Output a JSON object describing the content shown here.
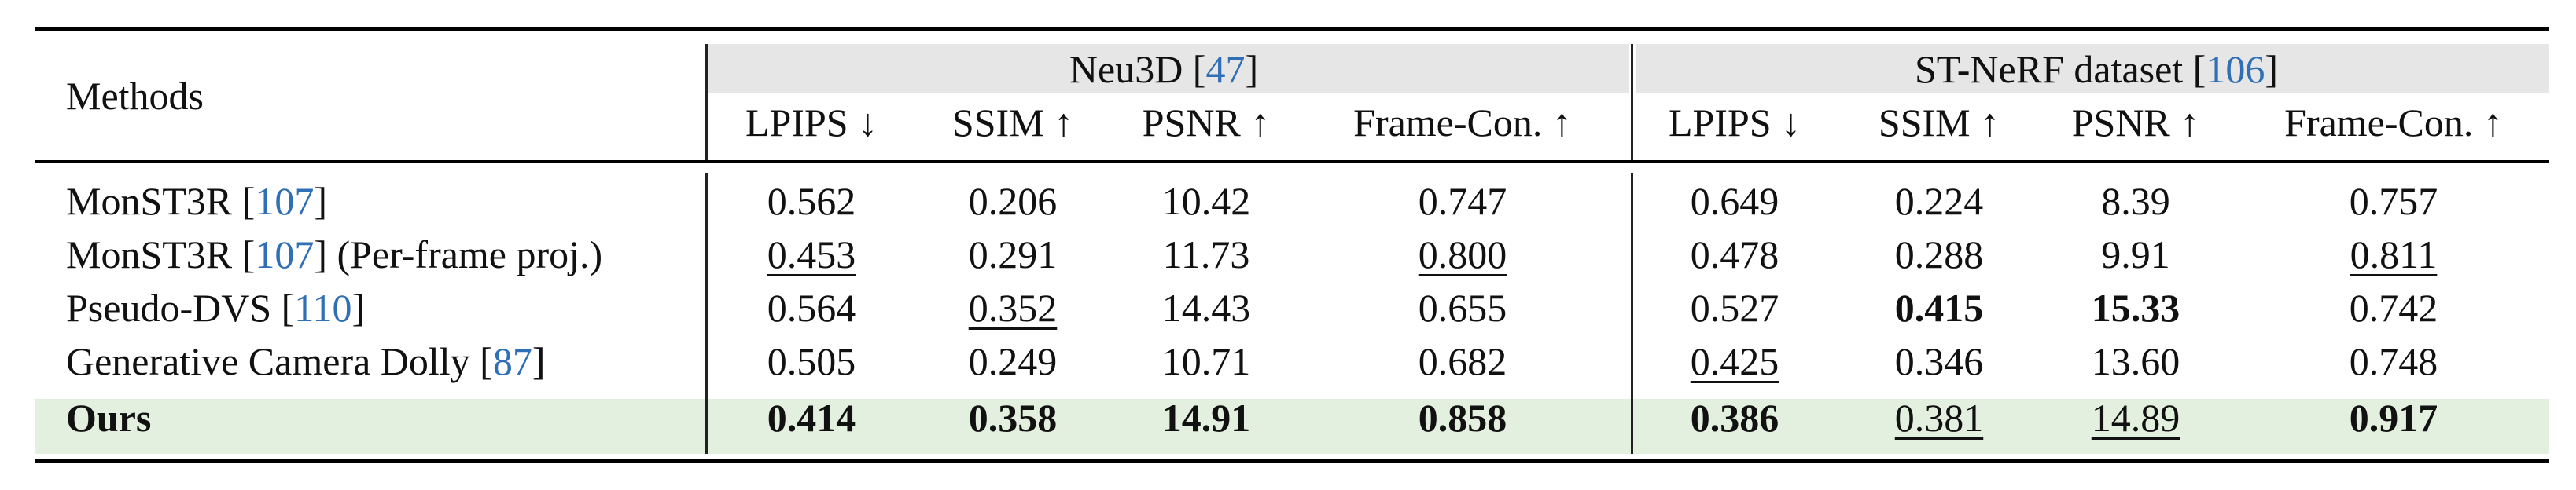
{
  "header": {
    "methods_label": "Methods",
    "groups": [
      {
        "name": "Neu3D [",
        "cite": "47",
        "close": "]"
      },
      {
        "name": "ST-NeRF dataset [",
        "cite": "106",
        "close": "]"
      }
    ],
    "metrics": [
      "LPIPS ↓",
      "SSIM ↑",
      "PSNR ↑",
      "Frame-Con. ↑"
    ]
  },
  "rows": [
    {
      "method": "MonST3R [",
      "cite": "107",
      "suffix": "]",
      "values": [
        "0.562",
        "0.206",
        "10.42",
        "0.747",
        "0.649",
        "0.224",
        "8.39",
        "0.757"
      ]
    },
    {
      "method": "MonST3R [",
      "cite": "107",
      "suffix": "] (Per-frame proj.)",
      "values": [
        "0.453",
        "0.291",
        "11.73",
        "0.800",
        "0.478",
        "0.288",
        "9.91",
        "0.811"
      ]
    },
    {
      "method": "Pseudo-DVS [",
      "cite": "110",
      "suffix": "]",
      "values": [
        "0.564",
        "0.352",
        "14.43",
        "0.655",
        "0.527",
        "0.415",
        "15.33",
        "0.742"
      ]
    },
    {
      "method": "Generative Camera Dolly [",
      "cite": "87",
      "suffix": "]",
      "values": [
        "0.505",
        "0.249",
        "10.71",
        "0.682",
        "0.425",
        "0.346",
        "13.60",
        "0.748"
      ]
    },
    {
      "method": "Ours",
      "cite": "",
      "suffix": "",
      "values": [
        "0.414",
        "0.358",
        "14.91",
        "0.858",
        "0.386",
        "0.381",
        "14.89",
        "0.917"
      ]
    }
  ],
  "colors": {
    "citation": "#2f6fb5",
    "highlight_row": "#e4f0df",
    "header_band": "#e6e6e6"
  },
  "emphasis": {
    "bold": [
      [
        4,
        0
      ],
      [
        4,
        1
      ],
      [
        4,
        2
      ],
      [
        4,
        3
      ],
      [
        4,
        4
      ],
      [
        2,
        5
      ],
      [
        2,
        6
      ],
      [
        4,
        7
      ]
    ],
    "underline": [
      [
        1,
        0
      ],
      [
        2,
        1
      ],
      [
        1,
        3
      ],
      [
        3,
        4
      ],
      [
        4,
        5
      ],
      [
        4,
        6
      ],
      [
        1,
        7
      ]
    ]
  }
}
